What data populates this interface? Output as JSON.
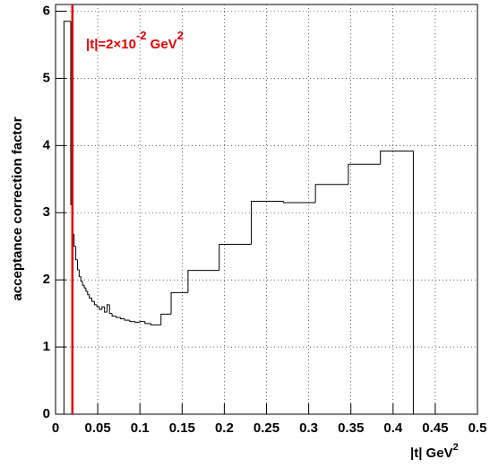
{
  "chart_data": {
    "type": "histogram",
    "ylabel": "acceptance correction factor",
    "xlabel": {
      "text": "|t| GeV",
      "sup": "2"
    },
    "annotation": {
      "text": "|t|=2×10",
      "sup": "-2",
      "unit": " GeV",
      "unit_sup": "2",
      "color": "#e00000"
    },
    "vline": {
      "x": 0.02,
      "color": "#e00000"
    },
    "bins": [
      0.01,
      0.018,
      0.02,
      0.022,
      0.024,
      0.026,
      0.028,
      0.03,
      0.032,
      0.034,
      0.036,
      0.038,
      0.04,
      0.043,
      0.046,
      0.049,
      0.052,
      0.055,
      0.058,
      0.061,
      0.064,
      0.067,
      0.072,
      0.077,
      0.082,
      0.088,
      0.094,
      0.1,
      0.106,
      0.113,
      0.125,
      0.137,
      0.157,
      0.194,
      0.232,
      0.27,
      0.308,
      0.347,
      0.385,
      0.424
    ],
    "values": [
      5.85,
      3.12,
      2.68,
      2.5,
      2.3,
      2.15,
      2.05,
      1.98,
      1.92,
      1.88,
      1.83,
      1.78,
      1.73,
      1.68,
      1.63,
      1.6,
      1.56,
      1.6,
      1.52,
      1.63,
      1.5,
      1.46,
      1.44,
      1.42,
      1.4,
      1.38,
      1.37,
      1.38,
      1.35,
      1.33,
      1.49,
      1.81,
      2.14,
      2.53,
      3.17,
      3.15,
      3.42,
      3.72,
      3.92
    ],
    "color": "#000000",
    "xlim": [
      0,
      0.5
    ],
    "ylim": [
      0,
      6.1
    ],
    "xticks": [
      0,
      0.05,
      0.1,
      0.15,
      0.2,
      0.25,
      0.3,
      0.35,
      0.4,
      0.45,
      0.5
    ],
    "yticks": [
      0,
      1,
      2,
      3,
      4,
      5,
      6
    ],
    "grid": true
  }
}
